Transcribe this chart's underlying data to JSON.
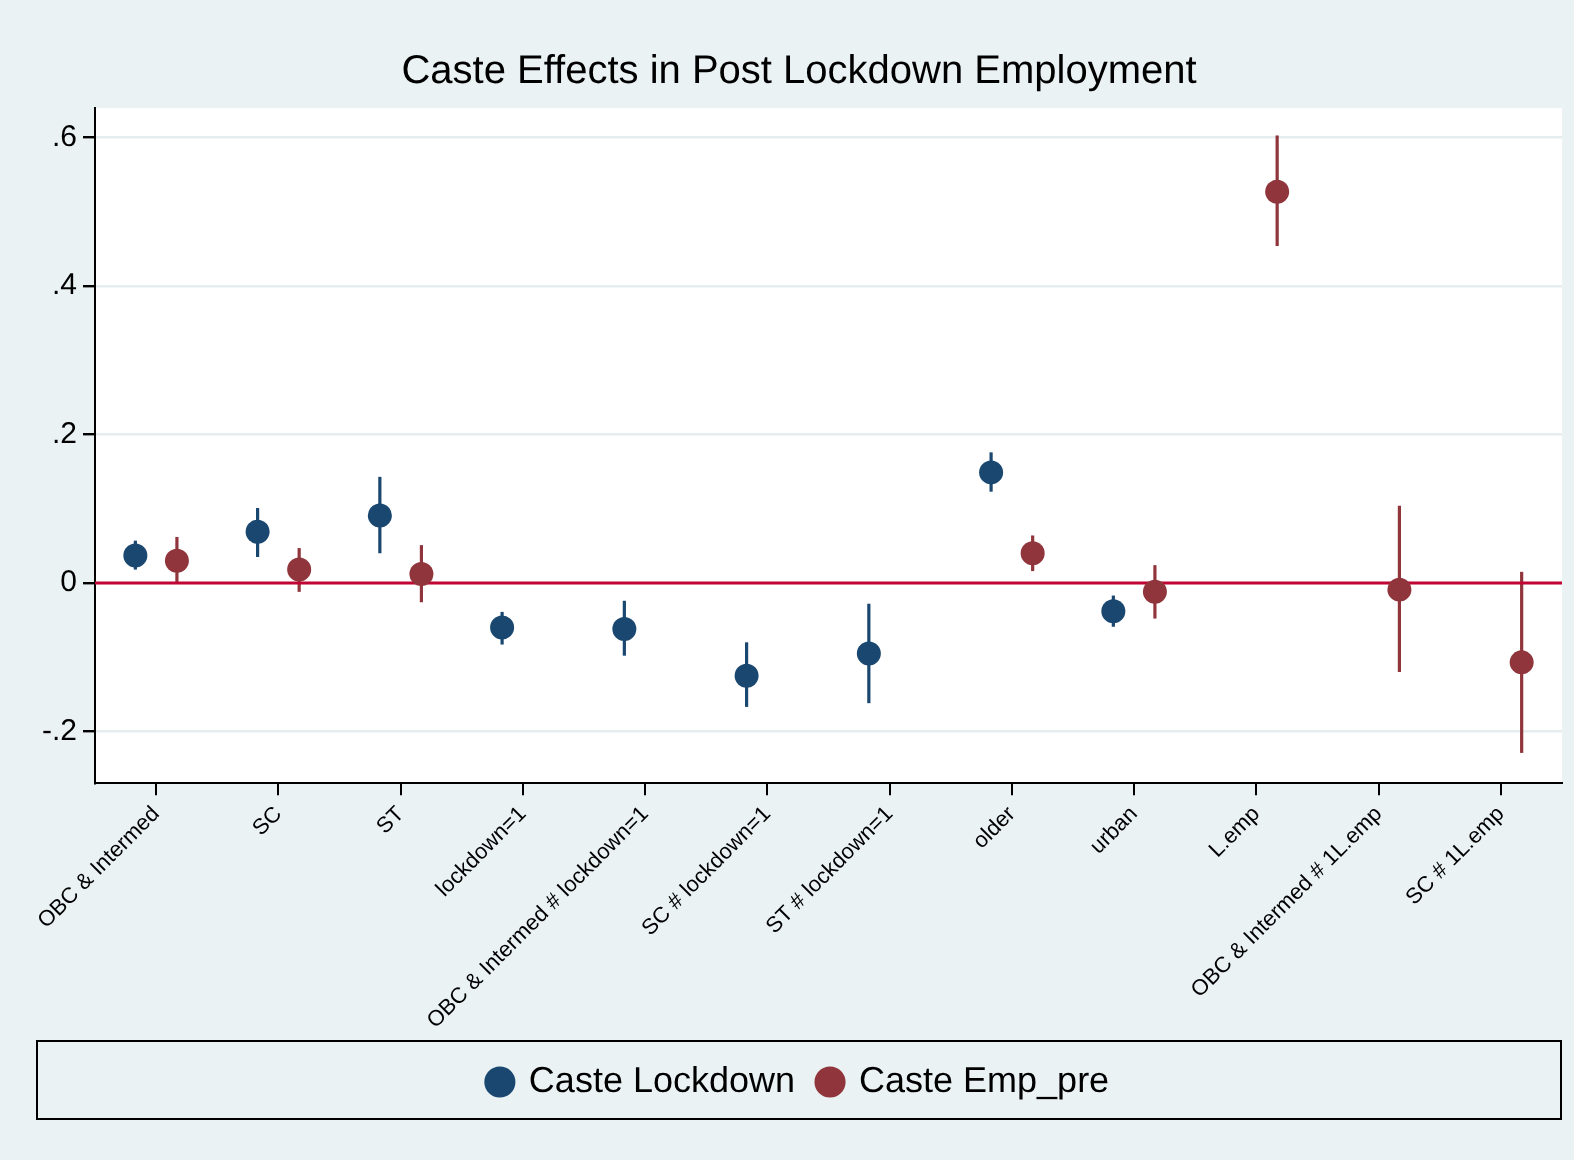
{
  "chart_data": {
    "type": "scatter",
    "title": "Caste Effects in Post Lockdown Employment",
    "categories": [
      "OBC & Intermed",
      "SC",
      "ST",
      "lockdown=1",
      "OBC & Intermed # lockdown=1",
      "SC # lockdown=1",
      "ST # lockdown=1",
      "older",
      "urban",
      "L.emp",
      "OBC & Intermed # 1L.emp",
      "SC # 1L.emp"
    ],
    "series": [
      {
        "name": "Caste Lockdown",
        "color": "#1a476f",
        "x": [
          "OBC & Intermed",
          "SC",
          "ST",
          "lockdown=1",
          "OBC & Intermed # lockdown=1",
          "SC # lockdown=1",
          "ST # lockdown=1",
          "older",
          "urban"
        ],
        "values": [
          0.037,
          0.069,
          0.091,
          -0.06,
          -0.062,
          -0.125,
          -0.095,
          0.149,
          -0.038
        ],
        "errors": [
          [
            0.018,
            0.057
          ],
          [
            0.035,
            0.101
          ],
          [
            0.04,
            0.143
          ],
          [
            -0.083,
            -0.039
          ],
          [
            -0.098,
            -0.024
          ],
          [
            -0.167,
            -0.08
          ],
          [
            -0.162,
            -0.028
          ],
          [
            0.123,
            0.176
          ],
          [
            -0.059,
            -0.017
          ]
        ]
      },
      {
        "name": "Caste Emp_pre",
        "color": "#90353b",
        "x": [
          "OBC & Intermed",
          "SC",
          "ST",
          "older",
          "urban",
          "L.emp",
          "OBC & Intermed # 1L.emp",
          "SC # 1L.emp"
        ],
        "values": [
          0.03,
          0.018,
          0.012,
          0.04,
          -0.012,
          0.527,
          -0.009,
          -0.107
        ],
        "errors": [
          [
            0.0,
            0.062
          ],
          [
            -0.012,
            0.047
          ],
          [
            -0.026,
            0.051
          ],
          [
            0.016,
            0.064
          ],
          [
            -0.048,
            0.024
          ],
          [
            0.454,
            0.603
          ],
          [
            -0.12,
            0.104
          ],
          [
            -0.229,
            0.015
          ]
        ]
      }
    ],
    "ylim": [
      -0.27,
      0.64
    ],
    "yticks": [
      {
        "value": -0.2,
        "label": "-.2"
      },
      {
        "value": 0,
        "label": "0"
      },
      {
        "value": 0.2,
        "label": ".2"
      },
      {
        "value": 0.4,
        "label": ".4"
      },
      {
        "value": 0.6,
        "label": ".6"
      }
    ],
    "ref_lines": [
      {
        "axis": "y",
        "value": 0,
        "color": "#c10534"
      }
    ],
    "grid": "y",
    "legend": "bottom",
    "marker": "circle"
  }
}
